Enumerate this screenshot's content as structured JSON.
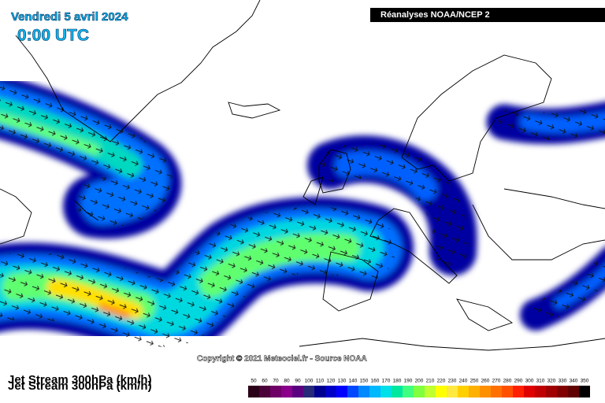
{
  "header": {
    "date": "Vendredi 5 avril 2024",
    "time": "0:00 UTC",
    "source": "Réanalyses NOAA/NCEP 2"
  },
  "copyright": "Copyright © 2021 Meteociel.fr - Source NOAA",
  "footer": {
    "title": "Jet Stream 300hPa (km/h)"
  },
  "legend": {
    "items": [
      {
        "value": 50,
        "color": "#2a0018"
      },
      {
        "value": 60,
        "color": "#4a0038"
      },
      {
        "value": 70,
        "color": "#6e0068"
      },
      {
        "value": 80,
        "color": "#8a008a"
      },
      {
        "value": 90,
        "color": "#5a0080"
      },
      {
        "value": 100,
        "color": "#282878"
      },
      {
        "value": 110,
        "color": "#000090"
      },
      {
        "value": 120,
        "color": "#0000c8"
      },
      {
        "value": 130,
        "color": "#0000ff"
      },
      {
        "value": 140,
        "color": "#0048ff"
      },
      {
        "value": 150,
        "color": "#0088ff"
      },
      {
        "value": 160,
        "color": "#00b8ff"
      },
      {
        "value": 170,
        "color": "#00e0e8"
      },
      {
        "value": 180,
        "color": "#00e8a0"
      },
      {
        "value": 190,
        "color": "#40ff80"
      },
      {
        "value": 200,
        "color": "#80ff40"
      },
      {
        "value": 210,
        "color": "#c0ff30"
      },
      {
        "value": 220,
        "color": "#ffff00"
      },
      {
        "value": 230,
        "color": "#ffe840"
      },
      {
        "value": 240,
        "color": "#ffd000"
      },
      {
        "value": 250,
        "color": "#ffb000"
      },
      {
        "value": 260,
        "color": "#ff9000"
      },
      {
        "value": 270,
        "color": "#ff7000"
      },
      {
        "value": 280,
        "color": "#ff5000"
      },
      {
        "value": 290,
        "color": "#ff2000"
      },
      {
        "value": 300,
        "color": "#e00000"
      },
      {
        "value": 310,
        "color": "#c00000"
      },
      {
        "value": 320,
        "color": "#a00000"
      },
      {
        "value": 330,
        "color": "#800000"
      },
      {
        "value": 340,
        "color": "#600000"
      },
      {
        "value": 350,
        "color": "#000000"
      }
    ]
  }
}
